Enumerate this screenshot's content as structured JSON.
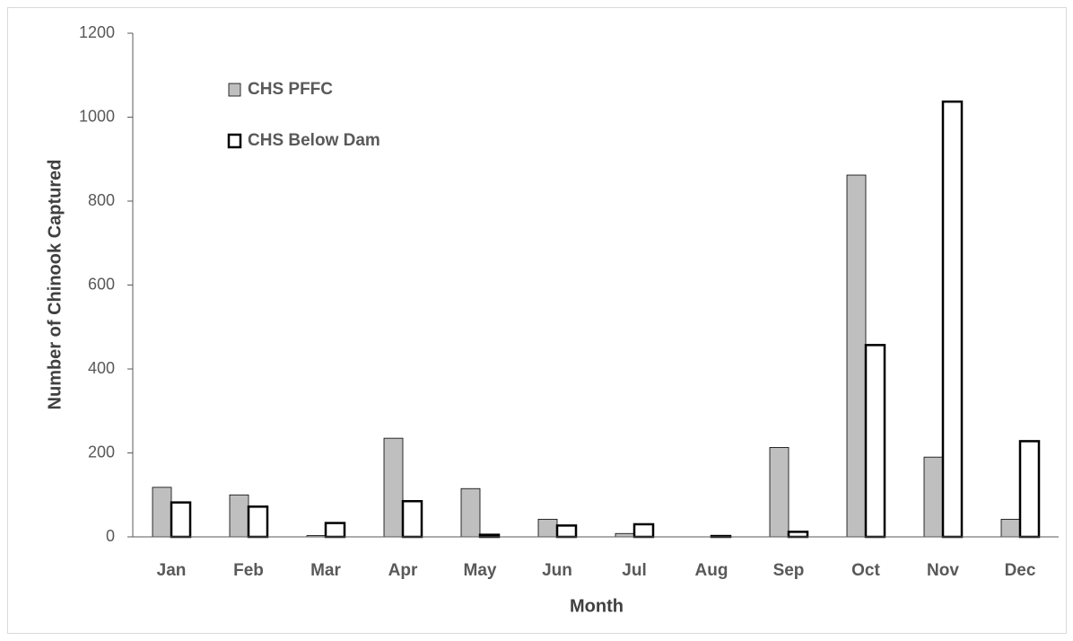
{
  "chart_data": {
    "type": "bar",
    "x_label": "Month",
    "y_label": "Number of Chinook Captured",
    "categories": [
      "Jan",
      "Feb",
      "Mar",
      "Apr",
      "May",
      "Jun",
      "Jul",
      "Aug",
      "Sep",
      "Oct",
      "Nov",
      "Dec"
    ],
    "series": [
      {
        "name": "CHS PFFC",
        "color": "#bfbfbf",
        "values": [
          118,
          100,
          3,
          235,
          115,
          42,
          8,
          0,
          213,
          862,
          190,
          42
        ]
      },
      {
        "name": "CHS Below Dam",
        "color": "#ffffff",
        "values": [
          82,
          72,
          33,
          85,
          5,
          27,
          30,
          2,
          12,
          457,
          1037,
          228
        ]
      }
    ],
    "ylim": [
      0,
      1200
    ],
    "yticks": [
      0,
      200,
      400,
      600,
      800,
      1000,
      1200
    ],
    "grid": false
  }
}
